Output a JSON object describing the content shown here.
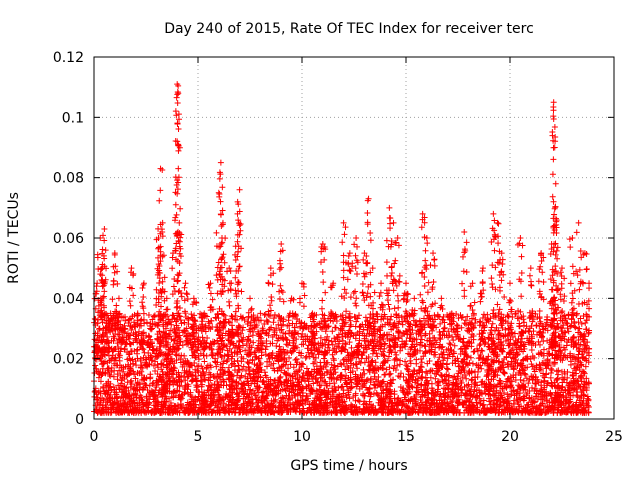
{
  "chart_data": {
    "type": "scatter",
    "title": "Day 240 of 2015, Rate Of TEC Index for receiver terc",
    "xlabel": "GPS time / hours",
    "ylabel": "ROTI / TECUs",
    "xlim": [
      0,
      25
    ],
    "ylim": [
      0,
      0.12
    ],
    "xticks": [
      "0",
      "5",
      "10",
      "15",
      "20",
      "25"
    ],
    "yticks": [
      "0",
      "0.02",
      "0.04",
      "0.06",
      "0.08",
      "0.1",
      "0.12"
    ],
    "grid": true,
    "marker": "plus",
    "series_color": "#ff0000",
    "x": [
      0.1,
      0.15,
      0.3,
      0.4,
      0.5,
      0.8,
      1.0,
      1.2,
      1.5,
      1.8,
      2.1,
      2.4,
      2.7,
      3.1,
      3.2,
      3.3,
      3.5,
      3.8,
      4.0,
      4.05,
      4.1,
      4.4,
      4.8,
      5.3,
      5.6,
      6.0,
      6.1,
      6.2,
      6.5,
      6.9,
      7.0,
      7.5,
      8.0,
      8.5,
      9.0,
      9.5,
      10.0,
      10.5,
      11.0,
      11.5,
      12.0,
      12.3,
      12.6,
      13.0,
      13.2,
      13.4,
      13.8,
      14.2,
      14.4,
      14.6,
      15.0,
      15.4,
      15.8,
      16.0,
      16.3,
      16.7,
      17.2,
      17.8,
      18.2,
      18.7,
      19.2,
      19.4,
      19.6,
      20.0,
      20.5,
      21.0,
      21.5,
      22.0,
      22.1,
      22.15,
      22.2,
      22.5,
      23.0,
      23.3,
      23.6,
      23.8
    ],
    "y": [
      0.026,
      0.045,
      0.06,
      0.05,
      0.063,
      0.035,
      0.055,
      0.04,
      0.03,
      0.05,
      0.035,
      0.045,
      0.03,
      0.06,
      0.083,
      0.065,
      0.04,
      0.055,
      0.111,
      0.108,
      0.065,
      0.045,
      0.04,
      0.035,
      0.045,
      0.075,
      0.085,
      0.065,
      0.05,
      0.068,
      0.076,
      0.04,
      0.035,
      0.05,
      0.058,
      0.04,
      0.045,
      0.035,
      0.058,
      0.045,
      0.065,
      0.055,
      0.06,
      0.055,
      0.073,
      0.05,
      0.045,
      0.07,
      0.065,
      0.06,
      0.045,
      0.04,
      0.068,
      0.06,
      0.055,
      0.04,
      0.035,
      0.062,
      0.045,
      0.05,
      0.068,
      0.065,
      0.055,
      0.045,
      0.06,
      0.05,
      0.055,
      0.058,
      0.105,
      0.09,
      0.078,
      0.05,
      0.06,
      0.065,
      0.055,
      0.045
    ],
    "dense_band": {
      "x_range": [
        0,
        23.8
      ],
      "y_range": [
        0.002,
        0.035
      ]
    }
  }
}
